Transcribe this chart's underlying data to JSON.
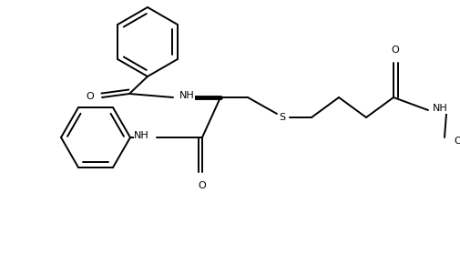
{
  "bg_color": "#ffffff",
  "line_color": "#000000",
  "lw": 1.4,
  "fig_w": 5.05,
  "fig_h": 3.01,
  "dpi": 100,
  "fs": 8.0,
  "ring_r": 0.38,
  "xlim": [
    0.0,
    5.05
  ],
  "ylim": [
    0.0,
    3.01
  ]
}
